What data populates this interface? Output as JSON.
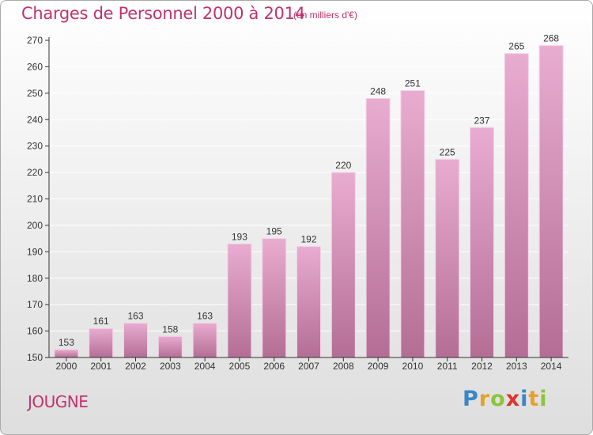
{
  "header": {
    "title": "Charges de Personnel 2000 à 2014",
    "unit": "(en milliers d'€)"
  },
  "footer": {
    "commune": "JOUGNE",
    "brand": "Proxiti",
    "brand_letters": [
      {
        "ch": "P",
        "color": "#3a86c8"
      },
      {
        "ch": "r",
        "color": "#e8a02a"
      },
      {
        "ch": "o",
        "color": "#8cc43c"
      },
      {
        "ch": "x",
        "color": "#e0332e"
      },
      {
        "ch": "i",
        "color": "#3a86c8"
      },
      {
        "ch": "t",
        "color": "#e8a02a"
      },
      {
        "ch": "i",
        "color": "#8cc43c"
      }
    ]
  },
  "colors": {
    "accent": "#c2326e",
    "bar_top": "#e9acd1",
    "bar_bottom": "#b46e95",
    "bar_edge": "#f4d3e6",
    "axis": "#333333",
    "grid": "#ffffff"
  },
  "chart_data": {
    "type": "bar",
    "title": "Charges de Personnel 2000 à 2014",
    "subtitle": "(en milliers d'€)",
    "xlabel": "",
    "ylabel": "",
    "categories": [
      "2000",
      "2001",
      "2002",
      "2003",
      "2004",
      "2005",
      "2006",
      "2007",
      "2008",
      "2009",
      "2010",
      "2011",
      "2012",
      "2013",
      "2014"
    ],
    "values": [
      153,
      161,
      163,
      158,
      163,
      193,
      195,
      192,
      220,
      248,
      251,
      225,
      237,
      265,
      268
    ],
    "ylim": [
      150,
      270
    ],
    "yticks": [
      150,
      160,
      170,
      180,
      190,
      200,
      210,
      220,
      230,
      240,
      250,
      260,
      270
    ],
    "grid": true,
    "data_labels": true
  }
}
